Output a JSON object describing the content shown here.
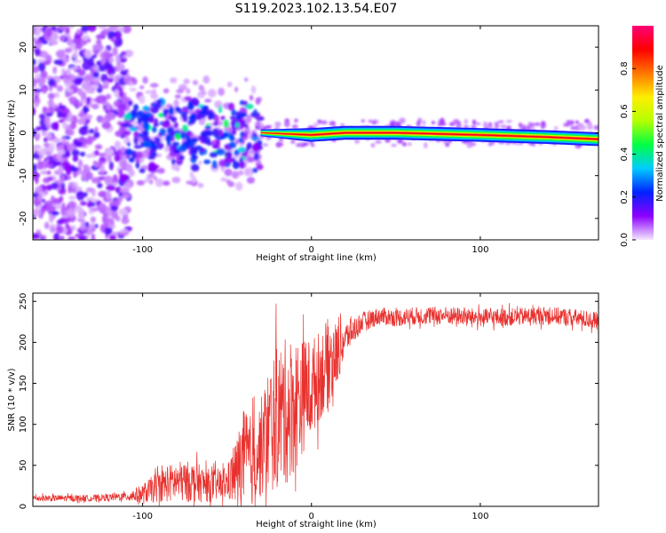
{
  "title": "S119.2023.102.13.54.E07",
  "chart_data": [
    {
      "type": "heatmap",
      "name": "spectrogram",
      "xlabel": "Height of straight line (km)",
      "ylabel": "Frequency (Hz)",
      "xlim": [
        -165,
        170
      ],
      "ylim": [
        -25,
        25
      ],
      "xticks": [
        -100,
        0,
        100
      ],
      "yticks": [
        -20,
        -10,
        0,
        10,
        20
      ],
      "xtick_labels": [
        "-100",
        "0",
        "100"
      ],
      "ytick_labels": [
        "-20",
        "-10",
        "0",
        "10",
        "20"
      ],
      "colorbar": {
        "label": "Normalized spectral amplitude",
        "range": [
          0,
          1
        ],
        "ticks": [
          0.0,
          0.2,
          0.4,
          0.6,
          0.8
        ],
        "tick_labels": [
          "0.0",
          "0.2",
          "0.4",
          "0.6",
          "0.8"
        ],
        "colors": [
          "#f4e8ff",
          "#8c00ff",
          "#0022ff",
          "#00ccff",
          "#00ff44",
          "#b4ff00",
          "#ffee00",
          "#ff7700",
          "#ff0000",
          "#ff0077"
        ]
      },
      "ridge": {
        "x": [
          -30,
          0,
          20,
          50,
          100,
          140,
          170
        ],
        "freq": [
          0,
          -0.5,
          0,
          0,
          -0.5,
          -1,
          -1.5
        ]
      },
      "regions": [
        {
          "x_range": [
            -165,
            -108
          ],
          "amplitude": 0.1,
          "description": "scattered noise"
        },
        {
          "x_range": [
            -110,
            -30
          ],
          "amplitude": 0.25,
          "description": "weak scattered signal near 0 Hz"
        },
        {
          "x_range": [
            -30,
            170
          ],
          "amplitude": 0.9,
          "description": "strong narrow signal near 0 Hz"
        }
      ]
    },
    {
      "type": "line",
      "name": "snr",
      "xlabel": "Height of straight line (km)",
      "ylabel": "SNR (10 * v/v)",
      "xlim": [
        -165,
        170
      ],
      "ylim": [
        0,
        260
      ],
      "xticks": [
        -100,
        0,
        100
      ],
      "yticks": [
        0,
        50,
        100,
        150,
        200,
        250
      ],
      "xtick_labels": [
        "-100",
        "0",
        "100"
      ],
      "ytick_labels": [
        "0",
        "50",
        "100",
        "150",
        "200",
        "250"
      ],
      "color": "#e8312e",
      "series": [
        {
          "name": "SNR envelope",
          "x": [
            -165,
            -130,
            -110,
            -100,
            -90,
            -80,
            -70,
            -60,
            -50,
            -45,
            -40,
            -35,
            -30,
            -25,
            -20,
            -15,
            -10,
            -5,
            0,
            5,
            10,
            15,
            20,
            30,
            40,
            50,
            60,
            80,
            100,
            120,
            140,
            160,
            170
          ],
          "mean": [
            10,
            10,
            12,
            15,
            25,
            30,
            30,
            25,
            28,
            40,
            60,
            55,
            70,
            95,
            110,
            115,
            125,
            135,
            145,
            160,
            175,
            185,
            205,
            225,
            232,
            230,
            232,
            233,
            230,
            231,
            233,
            229,
            226
          ],
          "spread": [
            4,
            4,
            5,
            12,
            20,
            25,
            25,
            20,
            20,
            40,
            60,
            55,
            60,
            80,
            90,
            90,
            85,
            70,
            60,
            55,
            55,
            40,
            20,
            12,
            11,
            11,
            11,
            11,
            11,
            11,
            11,
            11,
            11
          ]
        }
      ]
    }
  ]
}
